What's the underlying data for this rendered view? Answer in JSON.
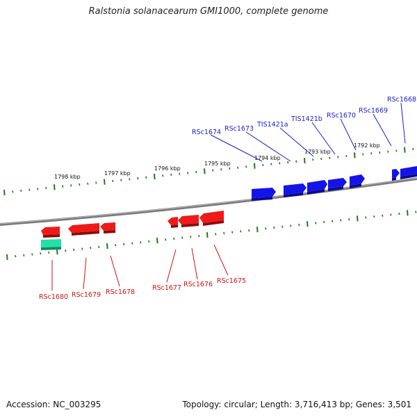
{
  "title": "Ralstonia solanacearum GMI1000, complete genome",
  "footer": {
    "accession": "Accession: NC_003295",
    "summary": "Topology: circular; Length: 3,716,413 bp; Genes: 3,501"
  },
  "colors": {
    "forward_gene": "#1010e0",
    "reverse_gene": "#e01818",
    "rna_gene": "#20d8a0",
    "backbone": "#7a7a7a",
    "tick": "#1a7a1a",
    "forward_label": "#1a1ad0",
    "reverse_label": "#d01010"
  },
  "scale_labels": [
    "1798 kbp",
    "1797 kbp",
    "1796 kbp",
    "1795 kbp",
    "1794 kbp",
    "1793 kbp",
    "1792 kbp"
  ],
  "forward_gene_labels": [
    "RSc1674",
    "RSc1673",
    "TIS1421a",
    "TIS1421b",
    "RSc1670",
    "RSc1669",
    "RSc1668"
  ],
  "reverse_gene_labels": [
    "RSc1680",
    "RSc1679",
    "RSc1678",
    "RSc1677",
    "RSc1676",
    "RSc1675"
  ]
}
